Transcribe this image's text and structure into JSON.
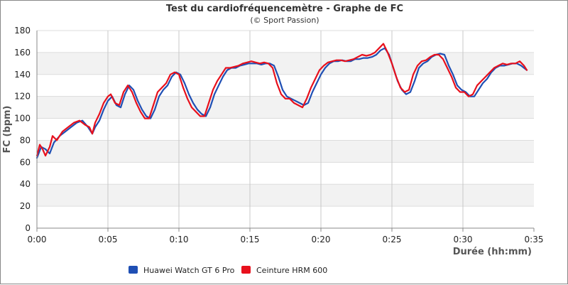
{
  "chart_data": {
    "type": "line",
    "title": "Test du cardiofréquencemètre - Graphe de FC",
    "subtitle": "(© Sport Passion)",
    "xlabel": "Durée (hh:mm)",
    "ylabel": "FC (bpm)",
    "ylim": [
      0,
      180
    ],
    "xlim": [
      0,
      35
    ],
    "y_ticks": [
      "0",
      "20",
      "40",
      "60",
      "80",
      "100",
      "120",
      "140",
      "160",
      "180"
    ],
    "x_ticks": [
      "0:00",
      "0:05",
      "0:10",
      "0:15",
      "0:20",
      "0:25",
      "0:30",
      "0:35"
    ],
    "grid": true,
    "legend_position": "bottom",
    "series": [
      {
        "name": "Huawei Watch GT 6 Pro",
        "color": "#1f4fb4",
        "points": [
          [
            0,
            64
          ],
          [
            0.3,
            74
          ],
          [
            0.6,
            72
          ],
          [
            0.9,
            68
          ],
          [
            1.2,
            78
          ],
          [
            1.6,
            84
          ],
          [
            2.0,
            88
          ],
          [
            2.4,
            92
          ],
          [
            2.8,
            96
          ],
          [
            3.2,
            98
          ],
          [
            3.6,
            92
          ],
          [
            3.9,
            86
          ],
          [
            4.1,
            92
          ],
          [
            4.4,
            98
          ],
          [
            4.7,
            108
          ],
          [
            5.0,
            116
          ],
          [
            5.3,
            120
          ],
          [
            5.6,
            112
          ],
          [
            5.9,
            110
          ],
          [
            6.2,
            122
          ],
          [
            6.5,
            130
          ],
          [
            6.8,
            126
          ],
          [
            7.1,
            116
          ],
          [
            7.4,
            108
          ],
          [
            7.7,
            102
          ],
          [
            8.0,
            100
          ],
          [
            8.3,
            108
          ],
          [
            8.6,
            120
          ],
          [
            8.9,
            126
          ],
          [
            9.2,
            130
          ],
          [
            9.5,
            138
          ],
          [
            9.8,
            142
          ],
          [
            10.1,
            140
          ],
          [
            10.4,
            132
          ],
          [
            10.7,
            122
          ],
          [
            11.0,
            114
          ],
          [
            11.3,
            108
          ],
          [
            11.6,
            104
          ],
          [
            11.9,
            102
          ],
          [
            12.2,
            110
          ],
          [
            12.5,
            122
          ],
          [
            12.8,
            130
          ],
          [
            13.1,
            138
          ],
          [
            13.4,
            144
          ],
          [
            13.7,
            146
          ],
          [
            14.0,
            146
          ],
          [
            14.3,
            148
          ],
          [
            14.6,
            149
          ],
          [
            14.9,
            150
          ],
          [
            15.2,
            150
          ],
          [
            15.5,
            150
          ],
          [
            15.8,
            149
          ],
          [
            16.1,
            150
          ],
          [
            16.4,
            150
          ],
          [
            16.7,
            148
          ],
          [
            17.0,
            138
          ],
          [
            17.3,
            126
          ],
          [
            17.6,
            120
          ],
          [
            17.9,
            118
          ],
          [
            18.2,
            116
          ],
          [
            18.5,
            114
          ],
          [
            18.8,
            112
          ],
          [
            19.1,
            114
          ],
          [
            19.4,
            124
          ],
          [
            19.7,
            132
          ],
          [
            20.0,
            140
          ],
          [
            20.3,
            146
          ],
          [
            20.6,
            150
          ],
          [
            20.9,
            152
          ],
          [
            21.2,
            152
          ],
          [
            21.5,
            153
          ],
          [
            21.8,
            152
          ],
          [
            22.1,
            152
          ],
          [
            22.4,
            154
          ],
          [
            22.7,
            154
          ],
          [
            23.0,
            155
          ],
          [
            23.3,
            155
          ],
          [
            23.6,
            156
          ],
          [
            23.9,
            158
          ],
          [
            24.2,
            162
          ],
          [
            24.5,
            164
          ],
          [
            24.8,
            158
          ],
          [
            25.1,
            146
          ],
          [
            25.4,
            134
          ],
          [
            25.7,
            126
          ],
          [
            26.0,
            122
          ],
          [
            26.3,
            124
          ],
          [
            26.6,
            134
          ],
          [
            26.9,
            146
          ],
          [
            27.2,
            150
          ],
          [
            27.5,
            152
          ],
          [
            27.8,
            156
          ],
          [
            28.1,
            158
          ],
          [
            28.4,
            159
          ],
          [
            28.7,
            158
          ],
          [
            29.0,
            148
          ],
          [
            29.3,
            140
          ],
          [
            29.6,
            130
          ],
          [
            29.9,
            126
          ],
          [
            30.2,
            124
          ],
          [
            30.5,
            120
          ],
          [
            30.8,
            120
          ],
          [
            31.1,
            126
          ],
          [
            31.4,
            132
          ],
          [
            31.7,
            136
          ],
          [
            32.0,
            142
          ],
          [
            32.3,
            146
          ],
          [
            32.6,
            148
          ],
          [
            32.9,
            148
          ],
          [
            33.2,
            149
          ],
          [
            33.5,
            150
          ],
          [
            33.8,
            150
          ],
          [
            34.1,
            148
          ],
          [
            34.4,
            145
          ],
          [
            34.5,
            144
          ]
        ]
      },
      {
        "name": "Ceinture HRM 600",
        "color": "#e8101c",
        "points": [
          [
            0,
            66
          ],
          [
            0.2,
            76
          ],
          [
            0.4,
            72
          ],
          [
            0.6,
            66
          ],
          [
            0.9,
            74
          ],
          [
            1.1,
            84
          ],
          [
            1.4,
            80
          ],
          [
            1.8,
            88
          ],
          [
            2.2,
            92
          ],
          [
            2.6,
            96
          ],
          [
            3.0,
            98
          ],
          [
            3.4,
            94
          ],
          [
            3.7,
            92
          ],
          [
            3.9,
            86
          ],
          [
            4.1,
            96
          ],
          [
            4.4,
            104
          ],
          [
            4.7,
            114
          ],
          [
            5.0,
            120
          ],
          [
            5.2,
            122
          ],
          [
            5.5,
            114
          ],
          [
            5.8,
            112
          ],
          [
            6.1,
            124
          ],
          [
            6.4,
            130
          ],
          [
            6.7,
            124
          ],
          [
            7.0,
            114
          ],
          [
            7.3,
            106
          ],
          [
            7.6,
            100
          ],
          [
            7.9,
            100
          ],
          [
            8.2,
            112
          ],
          [
            8.5,
            124
          ],
          [
            8.8,
            128
          ],
          [
            9.1,
            132
          ],
          [
            9.4,
            140
          ],
          [
            9.7,
            142
          ],
          [
            10.0,
            140
          ],
          [
            10.3,
            128
          ],
          [
            10.6,
            118
          ],
          [
            10.9,
            110
          ],
          [
            11.2,
            106
          ],
          [
            11.5,
            102
          ],
          [
            11.8,
            102
          ],
          [
            12.1,
            114
          ],
          [
            12.4,
            126
          ],
          [
            12.7,
            134
          ],
          [
            13.0,
            140
          ],
          [
            13.3,
            146
          ],
          [
            13.6,
            146
          ],
          [
            13.9,
            147
          ],
          [
            14.2,
            148
          ],
          [
            14.5,
            150
          ],
          [
            14.8,
            151
          ],
          [
            15.1,
            152
          ],
          [
            15.4,
            151
          ],
          [
            15.7,
            150
          ],
          [
            16.0,
            151
          ],
          [
            16.3,
            150
          ],
          [
            16.6,
            146
          ],
          [
            16.9,
            132
          ],
          [
            17.2,
            122
          ],
          [
            17.5,
            118
          ],
          [
            17.8,
            118
          ],
          [
            18.1,
            114
          ],
          [
            18.4,
            112
          ],
          [
            18.7,
            110
          ],
          [
            19.0,
            118
          ],
          [
            19.3,
            128
          ],
          [
            19.6,
            136
          ],
          [
            19.9,
            144
          ],
          [
            20.2,
            148
          ],
          [
            20.5,
            151
          ],
          [
            20.8,
            152
          ],
          [
            21.1,
            153
          ],
          [
            21.4,
            153
          ],
          [
            21.7,
            152
          ],
          [
            22.0,
            153
          ],
          [
            22.3,
            154
          ],
          [
            22.6,
            156
          ],
          [
            22.9,
            158
          ],
          [
            23.2,
            157
          ],
          [
            23.5,
            158
          ],
          [
            23.8,
            160
          ],
          [
            24.1,
            164
          ],
          [
            24.4,
            168
          ],
          [
            24.7,
            160
          ],
          [
            25.0,
            150
          ],
          [
            25.3,
            138
          ],
          [
            25.6,
            128
          ],
          [
            25.9,
            124
          ],
          [
            26.2,
            126
          ],
          [
            26.5,
            140
          ],
          [
            26.8,
            148
          ],
          [
            27.1,
            152
          ],
          [
            27.4,
            153
          ],
          [
            27.7,
            156
          ],
          [
            28.0,
            158
          ],
          [
            28.3,
            158
          ],
          [
            28.6,
            154
          ],
          [
            28.9,
            146
          ],
          [
            29.2,
            138
          ],
          [
            29.5,
            128
          ],
          [
            29.8,
            124
          ],
          [
            30.1,
            124
          ],
          [
            30.4,
            120
          ],
          [
            30.7,
            122
          ],
          [
            31.0,
            130
          ],
          [
            31.3,
            134
          ],
          [
            31.6,
            138
          ],
          [
            31.9,
            142
          ],
          [
            32.2,
            146
          ],
          [
            32.5,
            148
          ],
          [
            32.8,
            150
          ],
          [
            33.1,
            149
          ],
          [
            33.4,
            150
          ],
          [
            33.7,
            150
          ],
          [
            34.0,
            152
          ],
          [
            34.3,
            148
          ],
          [
            34.5,
            144
          ]
        ]
      }
    ]
  }
}
